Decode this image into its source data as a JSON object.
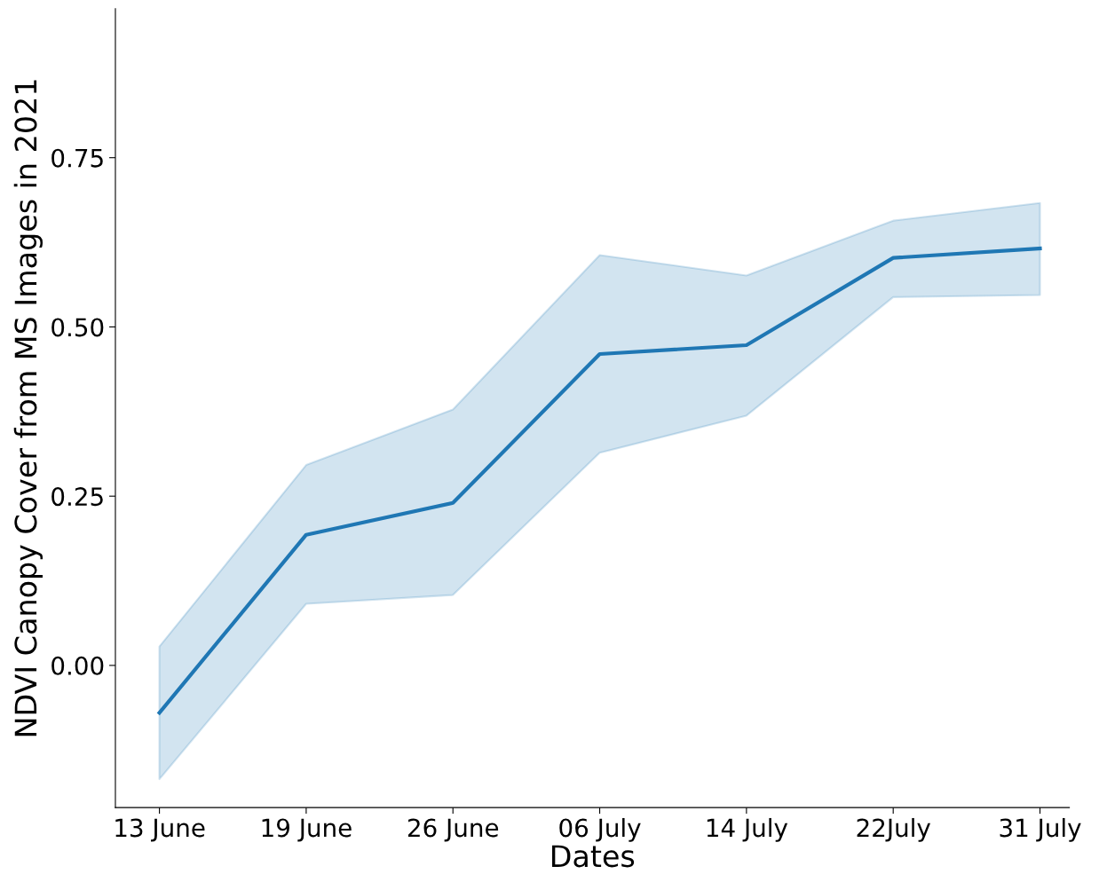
{
  "chart_data": {
    "type": "line",
    "xlabel": "Dates",
    "ylabel": "NDVI Canopy Cover from MS Images in 2021",
    "categories": [
      "13 June",
      "19 June",
      "26 June",
      "06 July",
      "14 July",
      "22July",
      "31 July"
    ],
    "series": [
      {
        "color": "#1f77b4",
        "values": [
          -0.07,
          0.193,
          0.24,
          0.46,
          0.473,
          0.602,
          0.616
        ],
        "lower": [
          -0.168,
          0.091,
          0.104,
          0.314,
          0.369,
          0.544,
          0.547
        ],
        "upper": [
          0.028,
          0.296,
          0.378,
          0.606,
          0.576,
          0.657,
          0.683
        ]
      }
    ],
    "ylim": [
      -0.21,
      0.97
    ],
    "yticks": [
      {
        "value": 0,
        "label": "0.00"
      },
      {
        "value": 0.25,
        "label": "0.25"
      },
      {
        "value": 0.5,
        "label": "0.50"
      },
      {
        "value": 0.75,
        "label": "0.75"
      }
    ],
    "line_style": "solid"
  }
}
